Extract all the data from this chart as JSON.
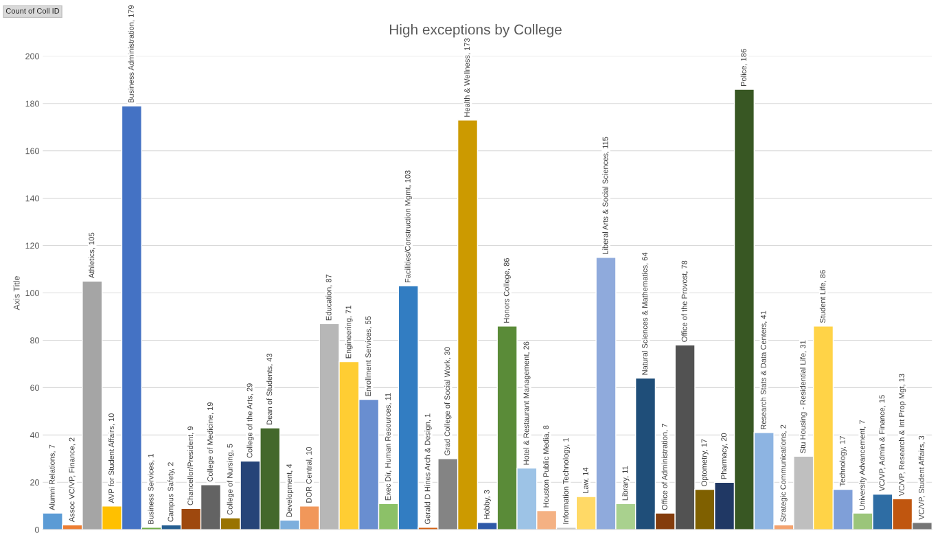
{
  "chart_data": {
    "type": "bar",
    "title": "High exceptions by College",
    "ylabel": "Axis Title",
    "annotations": [
      "Count of Coll ID"
    ],
    "categories": [
      null,
      null,
      null,
      null,
      null,
      null,
      null,
      null,
      null,
      null,
      null,
      null,
      null,
      null,
      null,
      null,
      null,
      null,
      null,
      null,
      null,
      null,
      null,
      null,
      null,
      null,
      null,
      null,
      null,
      null,
      null,
      null,
      null,
      null,
      null,
      null,
      null,
      null,
      null,
      null,
      null,
      null,
      null,
      null,
      null
    ],
    "values": [
      7,
      2,
      105,
      10,
      179,
      1,
      2,
      9,
      19,
      5,
      29,
      43,
      4,
      10,
      87,
      71,
      55,
      11,
      103,
      1,
      30,
      173,
      3,
      86,
      26,
      8,
      1,
      14,
      115,
      11,
      64,
      7,
      78,
      17,
      20,
      186,
      41,
      2,
      31,
      86,
      17,
      7,
      15,
      13,
      3
    ],
    "value_labels": [
      "Alumni Relations, 7",
      "Assoc VC/VP, Finance, 2",
      "Athletics, 105",
      "AVP for Student Affairs, 10",
      "Business Administration, 179",
      "Business Services, 1",
      "Campus Safety, 2",
      "Chancellor/President, 9",
      "College of Medicine, 19",
      "College of Nursing, 5",
      "College of the Arts, 29",
      "Dean of Students, 43",
      "Development, 4",
      "DOR Central, 10",
      "Education, 87",
      "Engineering, 71",
      "Enrollment Services, 55",
      "Exec Dir, Human Resources, 11",
      "Facilities/Construction Mgmt, 103",
      "Gerald D Hines Arch & Design, 1",
      "Grad College of Social Work, 30",
      "Health & Wellness, 173",
      "Hobby, 3",
      "Honors College, 86",
      "Hotel & Restaurant Management, 26",
      "Houston Public Media, 8",
      "Information Technology, 1",
      "Law, 14",
      "Liberal Arts & Social Sciences, 115",
      "Library, 11",
      "Natural Sciences & Mathematics, 64",
      "Office of Administration, 7",
      "Office of the Provost, 78",
      "Optometry, 17",
      "Pharmacy, 20",
      "Police, 186",
      "Research Stats & Data Centers, 41",
      "Strategic Communications, 2",
      "Stu Housing - Residential Life, 31",
      "Student Life, 86",
      "Technology, 17",
      "University Advancement, 7",
      "VC/VP, Admin & Finance, 15",
      "VC/VP, Research & Int Prop Mgt, 13",
      "VC/VP, Student Affairs, 3"
    ],
    "colors": [
      "#5b9bd5",
      "#ed7d31",
      "#a5a5a5",
      "#ffc000",
      "#4472c4",
      "#70ad47",
      "#255e91",
      "#9e480e",
      "#636363",
      "#997300",
      "#264478",
      "#43682b",
      "#7cafdd",
      "#f1975a",
      "#b7b7b7",
      "#ffcd33",
      "#698ed0",
      "#8cc168",
      "#327dc2",
      "#d26012",
      "#848484",
      "#cc9a00",
      "#2e59a8",
      "#5a8b38",
      "#9dc3e6",
      "#f4b183",
      "#c9c9c9",
      "#ffd966",
      "#8faadc",
      "#a9d18e",
      "#1f4e79",
      "#843c0c",
      "#525252",
      "#7f6000",
      "#203864",
      "#385723",
      "#8db4e2",
      "#f4a36f",
      "#bfbfbf",
      "#ffd347",
      "#7f9fd8",
      "#9bc57a",
      "#2e6da4",
      "#c0560f",
      "#757575"
    ],
    "ylim": [
      0,
      200
    ],
    "yticks": [
      0,
      20,
      40,
      60,
      80,
      100,
      120,
      140,
      160,
      180,
      200
    ],
    "grid": "y",
    "legend": false
  }
}
